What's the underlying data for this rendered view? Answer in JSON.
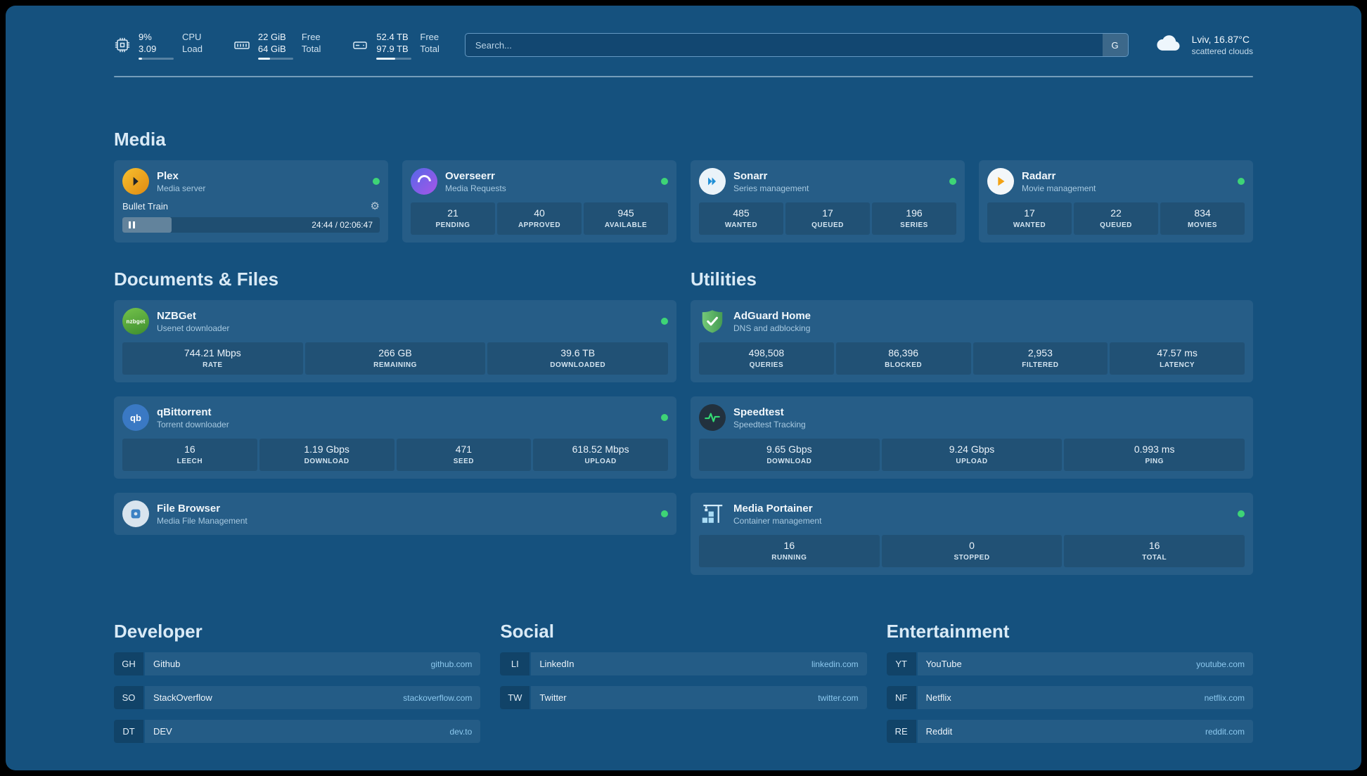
{
  "colors": {
    "background": "#15517e",
    "status_online": "#3ed476",
    "link_url": "#8cc8ee",
    "adguard_green": "#5cb663",
    "speedtest_pulse": "#34d974",
    "plex_amber": "#e8a020"
  },
  "topbar": {
    "resources": [
      {
        "icon": "cpu-icon",
        "value1": "9%",
        "value2": "3.09",
        "label1": "CPU",
        "label2": "Load",
        "bar_pct": 9
      },
      {
        "icon": "memory-icon",
        "value1": "22 GiB",
        "value2": "64 GiB",
        "label1": "Free",
        "label2": "Total",
        "bar_pct": 34
      },
      {
        "icon": "disk-icon",
        "value1": "52.4 TB",
        "value2": "97.9 TB",
        "label1": "Free",
        "label2": "Total",
        "bar_pct": 54
      }
    ],
    "search": {
      "placeholder": "Search...",
      "provider_button": "G"
    },
    "weather": {
      "location": "Lviv, 16.87°C",
      "condition": "scattered clouds"
    }
  },
  "sections": {
    "media": {
      "title": "Media",
      "plex": {
        "name": "Plex",
        "subtitle": "Media server",
        "now_playing": "Bullet Train",
        "time": "24:44 / 02:06:47",
        "progress_pct": 19
      },
      "overseerr": {
        "name": "Overseerr",
        "subtitle": "Media Requests",
        "stats": [
          {
            "value": "21",
            "label": "PENDING"
          },
          {
            "value": "40",
            "label": "APPROVED"
          },
          {
            "value": "945",
            "label": "AVAILABLE"
          }
        ]
      },
      "sonarr": {
        "name": "Sonarr",
        "subtitle": "Series management",
        "stats": [
          {
            "value": "485",
            "label": "WANTED"
          },
          {
            "value": "17",
            "label": "QUEUED"
          },
          {
            "value": "196",
            "label": "SERIES"
          }
        ]
      },
      "radarr": {
        "name": "Radarr",
        "subtitle": "Movie management",
        "stats": [
          {
            "value": "17",
            "label": "WANTED"
          },
          {
            "value": "22",
            "label": "QUEUED"
          },
          {
            "value": "834",
            "label": "MOVIES"
          }
        ]
      }
    },
    "documents": {
      "title": "Documents & Files",
      "nzbget": {
        "name": "NZBGet",
        "subtitle": "Usenet downloader",
        "logo_text": "nzbget",
        "stats": [
          {
            "value": "744.21 Mbps",
            "label": "RATE"
          },
          {
            "value": "266 GB",
            "label": "REMAINING"
          },
          {
            "value": "39.6 TB",
            "label": "DOWNLOADED"
          }
        ]
      },
      "qbittorrent": {
        "name": "qBittorrent",
        "subtitle": "Torrent downloader",
        "logo_text": "qb",
        "stats": [
          {
            "value": "16",
            "label": "LEECH"
          },
          {
            "value": "1.19 Gbps",
            "label": "DOWNLOAD"
          },
          {
            "value": "471",
            "label": "SEED"
          },
          {
            "value": "618.52 Mbps",
            "label": "UPLOAD"
          }
        ]
      },
      "filebrowser": {
        "name": "File Browser",
        "subtitle": "Media File Management"
      }
    },
    "utilities": {
      "title": "Utilities",
      "adguard": {
        "name": "AdGuard Home",
        "subtitle": "DNS and adblocking",
        "stats": [
          {
            "value": "498,508",
            "label": "QUERIES"
          },
          {
            "value": "86,396",
            "label": "BLOCKED"
          },
          {
            "value": "2,953",
            "label": "FILTERED"
          },
          {
            "value": "47.57 ms",
            "label": "LATENCY"
          }
        ]
      },
      "speedtest": {
        "name": "Speedtest",
        "subtitle": "Speedtest Tracking",
        "stats": [
          {
            "value": "9.65 Gbps",
            "label": "DOWNLOAD"
          },
          {
            "value": "9.24 Gbps",
            "label": "UPLOAD"
          },
          {
            "value": "0.993 ms",
            "label": "PING"
          }
        ]
      },
      "portainer": {
        "name": "Media Portainer",
        "subtitle": "Container management",
        "stats": [
          {
            "value": "16",
            "label": "RUNNING"
          },
          {
            "value": "0",
            "label": "STOPPED"
          },
          {
            "value": "16",
            "label": "TOTAL"
          }
        ]
      }
    },
    "bookmarks": [
      {
        "title": "Developer",
        "items": [
          {
            "abbr": "GH",
            "name": "Github",
            "url": "github.com"
          },
          {
            "abbr": "SO",
            "name": "StackOverflow",
            "url": "stackoverflow.com"
          },
          {
            "abbr": "DT",
            "name": "DEV",
            "url": "dev.to"
          }
        ]
      },
      {
        "title": "Social",
        "items": [
          {
            "abbr": "LI",
            "name": "LinkedIn",
            "url": "linkedin.com"
          },
          {
            "abbr": "TW",
            "name": "Twitter",
            "url": "twitter.com"
          }
        ]
      },
      {
        "title": "Entertainment",
        "items": [
          {
            "abbr": "YT",
            "name": "YouTube",
            "url": "youtube.com"
          },
          {
            "abbr": "NF",
            "name": "Netflix",
            "url": "netflix.com"
          },
          {
            "abbr": "RE",
            "name": "Reddit",
            "url": "reddit.com"
          }
        ]
      }
    ]
  }
}
